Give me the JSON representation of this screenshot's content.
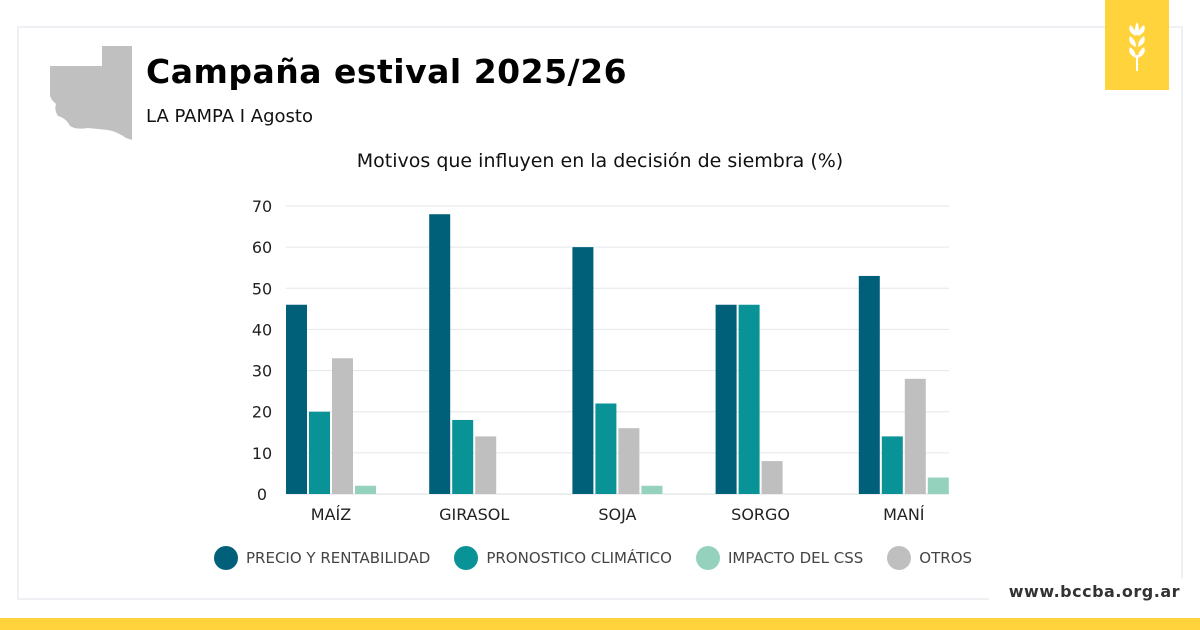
{
  "header": {
    "title": "Campaña estival 2025/26",
    "subtitle": "LA PAMPA I Agosto",
    "website": "www.bccba.org.ar"
  },
  "colors": {
    "precio": "#00607a",
    "pronostico": "#0a9396",
    "impacto": "#94d2bd",
    "otros": "#bfbfbf",
    "accent": "#fed33c"
  },
  "chart_data": {
    "type": "bar",
    "title": "Motivos que influyen en la decisión de siembra (%)",
    "categories": [
      "MAÍZ",
      "GIRASOL",
      "SOJA",
      "SORGO",
      "MANÍ"
    ],
    "ylim": [
      0,
      70
    ],
    "yticks": [
      0,
      10,
      20,
      30,
      40,
      50,
      60,
      70
    ],
    "grid": true,
    "legend_position": "bottom",
    "series": [
      {
        "name": "PRECIO Y RENTABILIDAD",
        "color": "#00607a",
        "values": [
          46,
          68,
          60,
          46,
          53
        ]
      },
      {
        "name": "PRONOSTICO CLIMÁTICO",
        "color": "#0a9396",
        "values": [
          20,
          18,
          22,
          46,
          14
        ]
      },
      {
        "name": "OTROS",
        "color": "#bfbfbf",
        "values": [
          33,
          14,
          16,
          8,
          28
        ]
      },
      {
        "name": "IMPACTO DEL CSS",
        "color": "#94d2bd",
        "values": [
          2,
          0,
          2,
          0,
          4
        ]
      }
    ],
    "legend_order": [
      0,
      1,
      3,
      2
    ]
  }
}
